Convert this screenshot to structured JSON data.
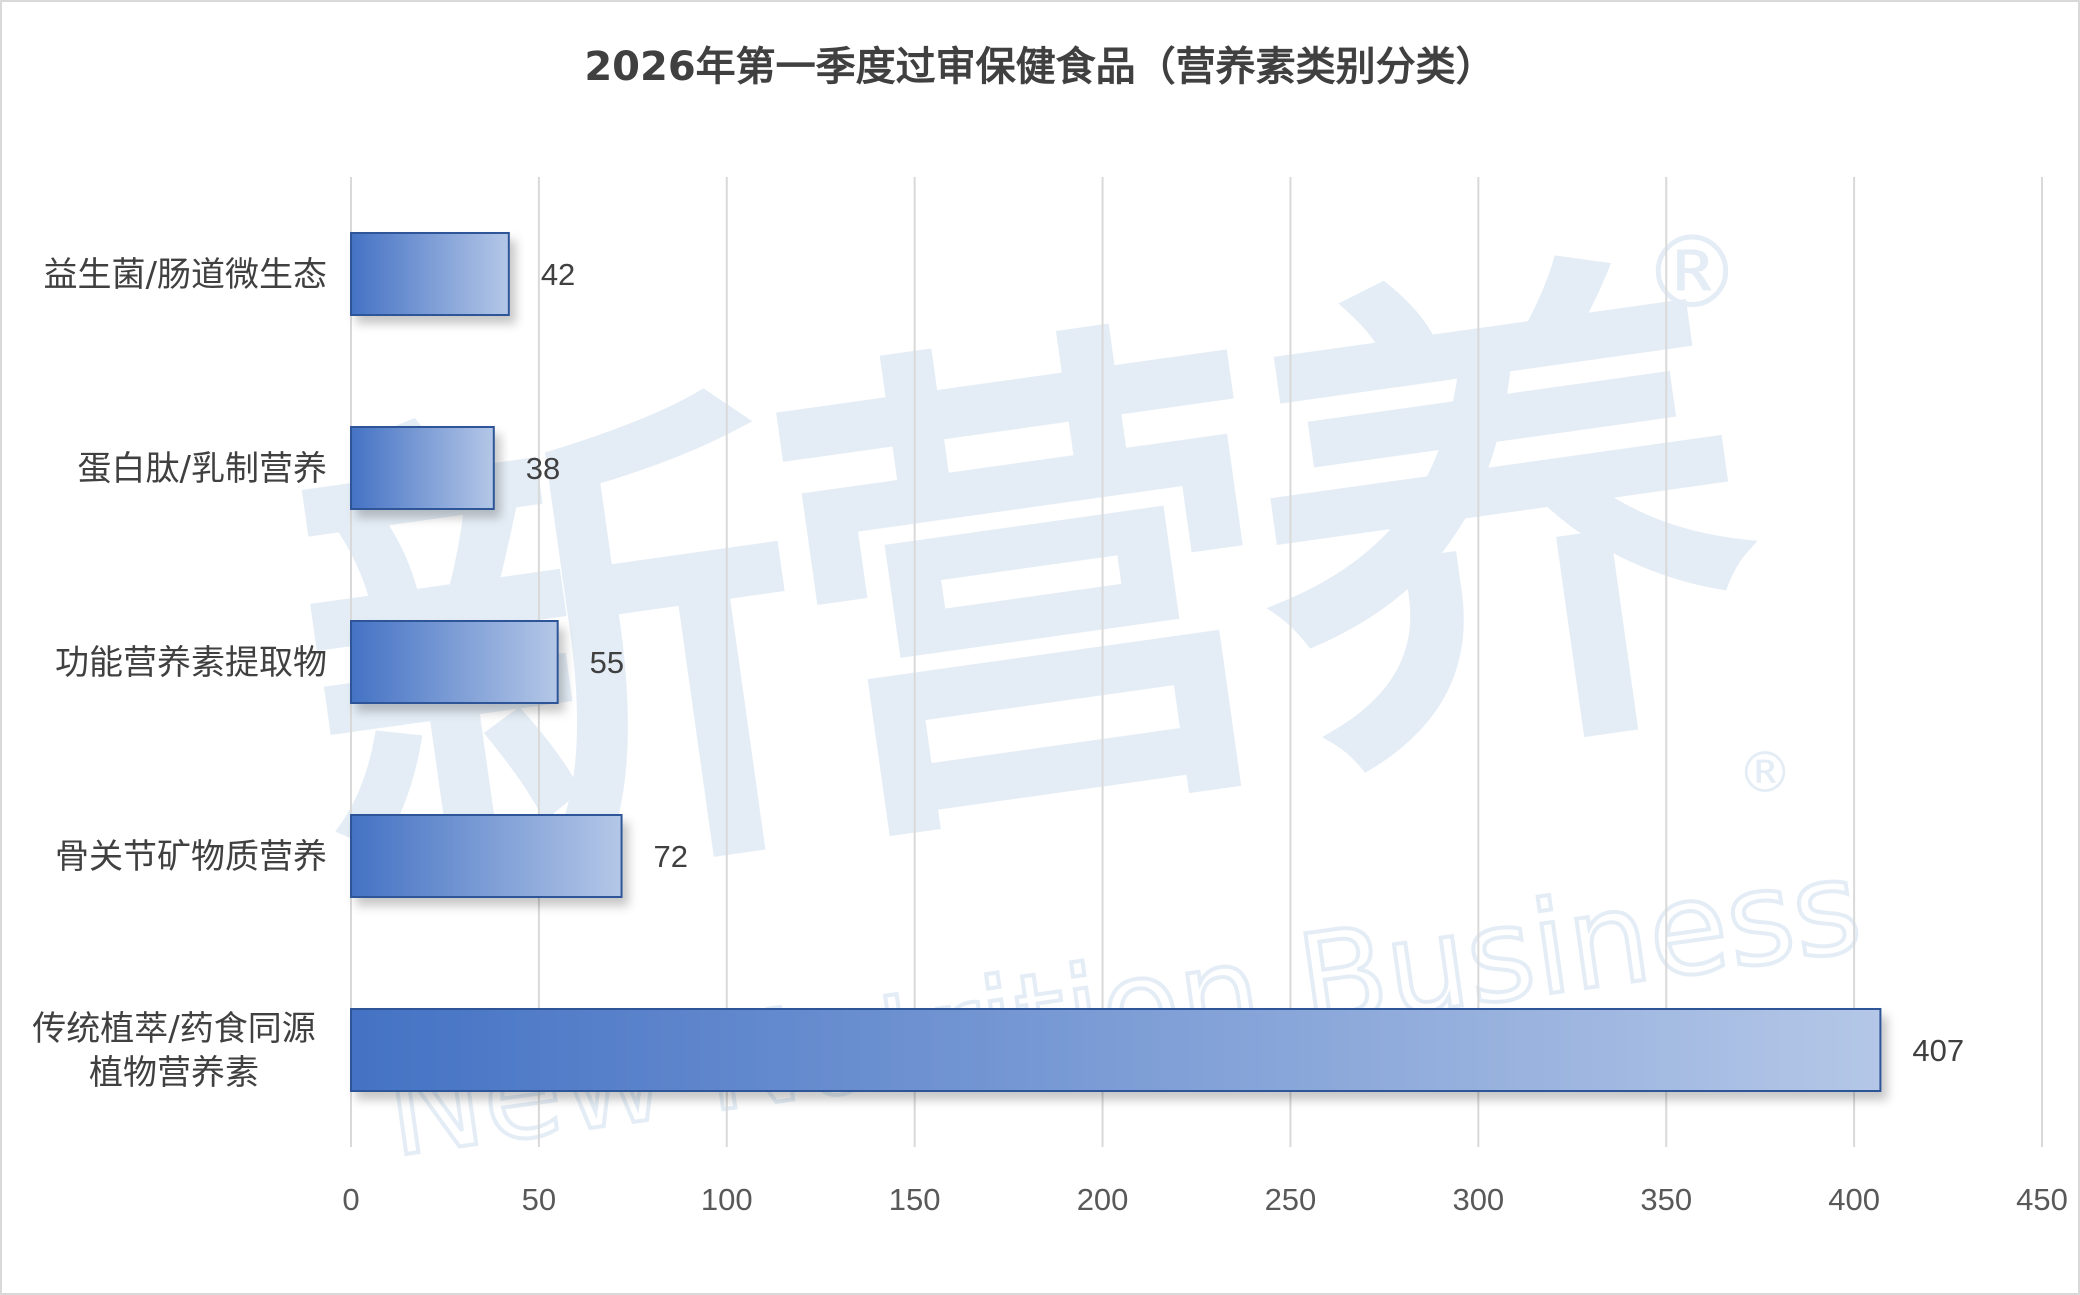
{
  "chart_data": {
    "type": "bar",
    "orientation": "horizontal",
    "title": "2026年第一季度过审保健食品（营养素类别分类）",
    "categories": [
      "益生菌/肠道微生态",
      "蛋白肽/乳制营养",
      "功能营养素提取物",
      "骨关节矿物质营养",
      "传统植萃/药食同源植物营养素"
    ],
    "category_lines": [
      [
        "益生菌/肠道微生态"
      ],
      [
        "蛋白肽/乳制营养"
      ],
      [
        "功能营养素提取物"
      ],
      [
        "骨关节矿物质营养"
      ],
      [
        "传统植萃/药食同源",
        "植物营养素"
      ]
    ],
    "values": [
      42,
      38,
      55,
      72,
      407
    ],
    "data_labels": [
      "42",
      "38",
      "55",
      "72",
      "407"
    ],
    "xlim": [
      0,
      450
    ],
    "ticks": [
      0,
      50,
      100,
      150,
      200,
      250,
      300,
      350,
      400,
      450
    ],
    "tick_labels": [
      "0",
      "50",
      "100",
      "150",
      "200",
      "250",
      "300",
      "350",
      "400",
      "450"
    ],
    "grid": true,
    "legend": "none",
    "bar_colors": {
      "start": "#4472c4",
      "end": "#b4c7e7",
      "border": "#2f5597"
    },
    "grid_color": "#d9d9d9"
  },
  "watermark": {
    "main": "新营养",
    "sub": "New Nutrition Business",
    "mark": "®",
    "color": "#e4edf6"
  }
}
